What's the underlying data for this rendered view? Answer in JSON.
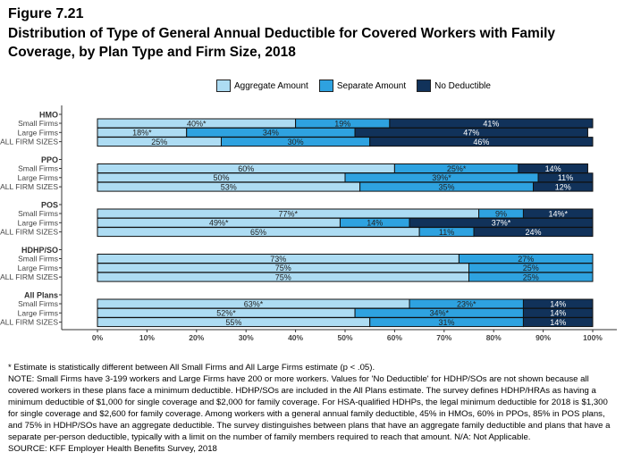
{
  "figure_label": "Figure 7.21",
  "title": "Distribution of Type of General Annual Deductible for Covered Workers with Family Coverage, by Plan Type and Firm Size, 2018",
  "colors": {
    "Aggregate Amount": "#addcf3",
    "Separate Amount": "#2ea2e0",
    "No Deductible": "#11325a"
  },
  "chart_data": {
    "type": "bar",
    "orientation": "horizontal",
    "stacked": true,
    "series_names": [
      "Aggregate Amount",
      "Separate Amount",
      "No Deductible"
    ],
    "legend_position": "top",
    "xlim": [
      0,
      100
    ],
    "x_ticks": [
      "0%",
      "10%",
      "20%",
      "30%",
      "40%",
      "50%",
      "60%",
      "70%",
      "80%",
      "90%",
      "100%"
    ],
    "groups": [
      {
        "name": "HMO",
        "rows": [
          {
            "label": "Small Firms",
            "values": [
              40,
              19,
              41
            ],
            "labels": [
              "40%*",
              "19%",
              "41%"
            ]
          },
          {
            "label": "Large Firms",
            "values": [
              18,
              34,
              47
            ],
            "labels": [
              "18%*",
              "34%",
              "47%"
            ]
          },
          {
            "label": "ALL FIRM SIZES",
            "values": [
              25,
              30,
              46
            ],
            "labels": [
              "25%",
              "30%",
              "46%"
            ]
          }
        ]
      },
      {
        "name": "PPO",
        "rows": [
          {
            "label": "Small Firms",
            "values": [
              60,
              25,
              14
            ],
            "labels": [
              "60%",
              "25%*",
              "14%"
            ]
          },
          {
            "label": "Large Firms",
            "values": [
              50,
              39,
              11
            ],
            "labels": [
              "50%",
              "39%*",
              "11%"
            ]
          },
          {
            "label": "ALL FIRM SIZES",
            "values": [
              53,
              35,
              12
            ],
            "labels": [
              "53%",
              "35%",
              "12%"
            ]
          }
        ]
      },
      {
        "name": "POS",
        "rows": [
          {
            "label": "Small Firms",
            "values": [
              77,
              9,
              14
            ],
            "labels": [
              "77%*",
              "9%",
              "14%*"
            ]
          },
          {
            "label": "Large Firms",
            "values": [
              49,
              14,
              37
            ],
            "labels": [
              "49%*",
              "14%",
              "37%*"
            ]
          },
          {
            "label": "ALL FIRM SIZES",
            "values": [
              65,
              11,
              24
            ],
            "labels": [
              "65%",
              "11%",
              "24%"
            ]
          }
        ]
      },
      {
        "name": "HDHP/SO",
        "rows": [
          {
            "label": "Small Firms",
            "values": [
              73,
              27,
              0
            ],
            "labels": [
              "73%",
              "27%",
              ""
            ]
          },
          {
            "label": "Large Firms",
            "values": [
              75,
              25,
              0
            ],
            "labels": [
              "75%",
              "25%",
              ""
            ]
          },
          {
            "label": "ALL FIRM SIZES",
            "values": [
              75,
              25,
              0
            ],
            "labels": [
              "75%",
              "25%",
              ""
            ]
          }
        ]
      },
      {
        "name": "All Plans",
        "rows": [
          {
            "label": "Small Firms",
            "values": [
              63,
              23,
              14
            ],
            "labels": [
              "63%*",
              "23%*",
              "14%"
            ]
          },
          {
            "label": "Large Firms",
            "values": [
              52,
              34,
              14
            ],
            "labels": [
              "52%*",
              "34%*",
              "14%"
            ]
          },
          {
            "label": "ALL FIRM SIZES",
            "values": [
              55,
              31,
              14
            ],
            "labels": [
              "55%",
              "31%",
              "14%"
            ]
          }
        ]
      }
    ]
  },
  "notes": [
    "* Estimate is statistically different between All Small Firms and All Large Firms estimate (p < .05).",
    "NOTE: Small Firms have 3-199 workers and Large Firms have 200 or more workers. Values for 'No Deductible' for HDHP/SOs are not shown because all covered workers in these plans face a minimum deductible. HDHP/SOs are included in the All Plans estimate. The survey defines HDHP/HRAs as having a minimum deductible of $1,000 for single coverage and $2,000 for family coverage. For HSA-qualified HDHPs, the legal minimum deductible for 2018 is $1,300 for single coverage and $2,600 for family coverage. Among workers with a general annual family deductible, 45% in HMOs, 60% in PPOs, 85% in POS plans, and 75% in HDHP/SOs have an aggregate deductible. The survey distinguishes between plans that have an aggregate family deductible and plans that have a separate per-person deductible, typically with a limit on the number of family members required to reach that amount. N/A: Not Applicable.",
    "SOURCE: KFF Employer Health Benefits Survey, 2018"
  ]
}
